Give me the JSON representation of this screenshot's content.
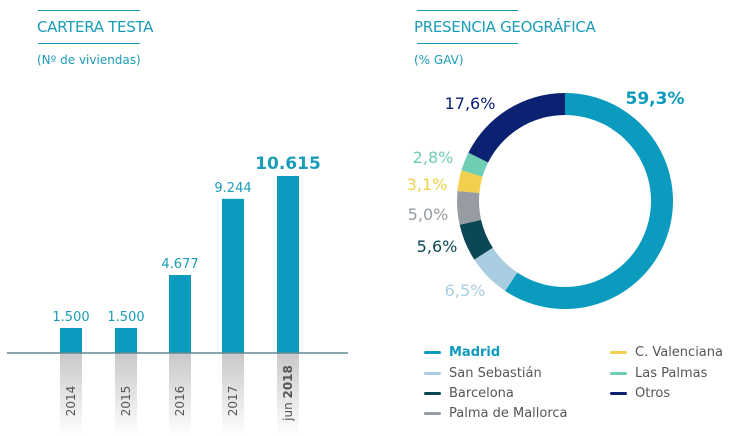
{
  "left": {
    "title": "CARTERA TESTA",
    "subtitle": "(Nº de viviendas)"
  },
  "right": {
    "title": "PRESENCIA GEOGRÁFICA",
    "subtitle": "(% GAV)"
  },
  "chart_data": [
    {
      "type": "bar",
      "title": "CARTERA TESTA",
      "subtitle": "(Nº de viviendas)",
      "categories": [
        {
          "prefix": "",
          "year": "2014"
        },
        {
          "prefix": "",
          "year": "2015"
        },
        {
          "prefix": "",
          "year": "2016"
        },
        {
          "prefix": "",
          "year": "2017"
        },
        {
          "prefix": "jun ",
          "year": "2018"
        }
      ],
      "values": [
        1500,
        1500,
        4677,
        9244,
        10615
      ],
      "data_labels": [
        "1.500",
        "1.500",
        "4.677",
        "9.244",
        "10.615"
      ],
      "ylim": [
        0,
        10615
      ],
      "grid": false,
      "bar_color": "#0a9bbf",
      "label_color": "#1b9cb8"
    },
    {
      "type": "pie",
      "variant": "donut",
      "title": "PRESENCIA GEOGRÁFICA",
      "subtitle": "(% GAV)",
      "legend_position": "bottom",
      "slices": [
        {
          "name": "Madrid",
          "value": 59.3,
          "label": "59,3%",
          "color": "#0a9bbf"
        },
        {
          "name": "San Sebastián",
          "value": 6.5,
          "label": "6,5%",
          "color": "#a9cde0"
        },
        {
          "name": "Barcelona",
          "value": 5.6,
          "label": "5,6%",
          "color": "#0b4755"
        },
        {
          "name": "Palma de Mallorca",
          "value": 5.0,
          "label": "5,0%",
          "color": "#969ca2"
        },
        {
          "name": "C. Valenciana",
          "value": 3.1,
          "label": "3,1%",
          "color": "#f0d04c"
        },
        {
          "name": "Las Palmas",
          "value": 2.8,
          "label": "2,8%",
          "color": "#6fcdb4"
        },
        {
          "name": "Otros",
          "value": 17.6,
          "label": "17,6%",
          "color": "#0b2172"
        }
      ]
    }
  ]
}
